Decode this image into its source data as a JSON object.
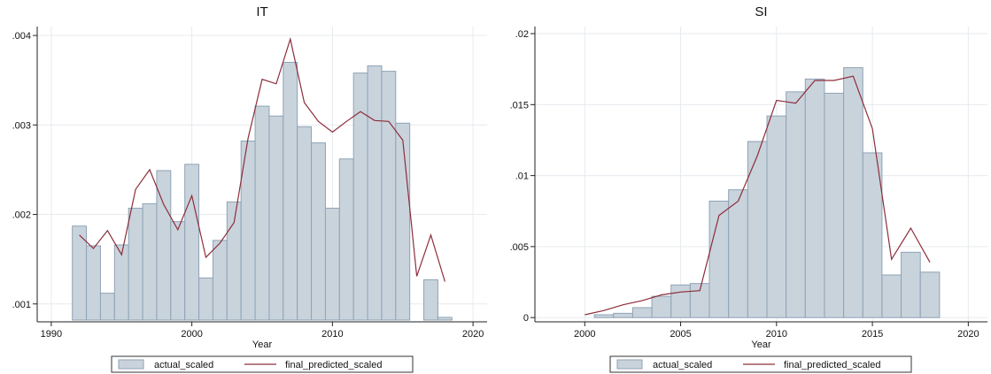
{
  "colors": {
    "bar_fill": "#c9d3dc",
    "bar_stroke": "#8ea3b5",
    "line": "#8c2d3a",
    "grid": "#e6eaee",
    "axis": "#222222"
  },
  "chart_data": [
    {
      "type": "bar",
      "title": "IT",
      "xlabel": "Year",
      "ylabel": "",
      "xlim": [
        1989,
        2021
      ],
      "ylim": [
        0.0008,
        0.0041
      ],
      "bar_base": 0.00082,
      "x_ticks": [
        1990,
        2000,
        2010,
        2020
      ],
      "x_tick_labels": [
        "1990",
        "2000",
        "2010",
        "2020"
      ],
      "y_ticks": [
        0.001,
        0.002,
        0.003,
        0.004
      ],
      "y_tick_labels": [
        ".001",
        ".002",
        ".003",
        ".004"
      ],
      "grid": true,
      "legend_position": "bottom",
      "series": [
        {
          "name": "actual_scaled",
          "kind": "bar",
          "x": [
            1992,
            1993,
            1994,
            1995,
            1996,
            1997,
            1998,
            1999,
            2000,
            2001,
            2002,
            2003,
            2004,
            2005,
            2006,
            2007,
            2008,
            2009,
            2010,
            2011,
            2012,
            2013,
            2014,
            2015,
            2017,
            2018
          ],
          "values": [
            0.00187,
            0.00165,
            0.00112,
            0.00166,
            0.00207,
            0.00212,
            0.00249,
            0.00192,
            0.00256,
            0.00129,
            0.00171,
            0.00214,
            0.00282,
            0.00321,
            0.0031,
            0.0037,
            0.00298,
            0.0028,
            0.00207,
            0.00262,
            0.00358,
            0.00366,
            0.0036,
            0.00302,
            0.00127,
            0.00085
          ]
        },
        {
          "name": "final_predicted_scaled",
          "kind": "line",
          "x": [
            1992,
            1993,
            1994,
            1995,
            1996,
            1997,
            1998,
            1999,
            2000,
            2001,
            2002,
            2003,
            2004,
            2005,
            2006,
            2007,
            2008,
            2009,
            2010,
            2011,
            2012,
            2013,
            2014,
            2015,
            2016,
            2017,
            2018
          ],
          "values": [
            0.00177,
            0.00162,
            0.00182,
            0.00155,
            0.00228,
            0.0025,
            0.00211,
            0.00183,
            0.00221,
            0.00152,
            0.00168,
            0.00191,
            0.00285,
            0.00351,
            0.00346,
            0.00396,
            0.00325,
            0.00304,
            0.00292,
            0.00304,
            0.00315,
            0.00305,
            0.00304,
            0.00283,
            0.00131,
            0.00177,
            0.00125
          ]
        }
      ]
    },
    {
      "type": "bar",
      "title": "SI",
      "xlabel": "Year",
      "ylabel": "",
      "xlim": [
        1997.4,
        2021
      ],
      "ylim": [
        -0.0003,
        0.0205
      ],
      "bar_base": 0,
      "x_ticks": [
        2000,
        2005,
        2010,
        2015,
        2020
      ],
      "x_tick_labels": [
        "2000",
        "2005",
        "2010",
        "2015",
        "2020"
      ],
      "y_ticks": [
        0,
        0.005,
        0.01,
        0.015,
        0.02
      ],
      "y_tick_labels": [
        "0",
        ".005",
        ".01",
        ".015",
        ".02"
      ],
      "grid": true,
      "legend_position": "bottom",
      "series": [
        {
          "name": "actual_scaled",
          "kind": "bar",
          "x": [
            2001,
            2002,
            2003,
            2004,
            2005,
            2006,
            2007,
            2008,
            2009,
            2010,
            2011,
            2012,
            2013,
            2014,
            2015,
            2016,
            2017,
            2018
          ],
          "values": [
            0.0002,
            0.0003,
            0.0007,
            0.0015,
            0.0023,
            0.0024,
            0.0082,
            0.009,
            0.0124,
            0.0142,
            0.0159,
            0.0168,
            0.0158,
            0.0176,
            0.0116,
            0.003,
            0.0046,
            0.0032
          ]
        },
        {
          "name": "final_predicted_scaled",
          "kind": "line",
          "x": [
            2000,
            2001,
            2002,
            2003,
            2004,
            2005,
            2006,
            2007,
            2008,
            2009,
            2010,
            2011,
            2012,
            2013,
            2014,
            2015,
            2016,
            2017,
            2018
          ],
          "values": [
            0.0002,
            0.0005,
            0.0009,
            0.0012,
            0.0016,
            0.0018,
            0.0019,
            0.0072,
            0.0082,
            0.0114,
            0.0153,
            0.0151,
            0.0167,
            0.0167,
            0.017,
            0.0133,
            0.0041,
            0.0063,
            0.0039
          ]
        }
      ]
    }
  ]
}
